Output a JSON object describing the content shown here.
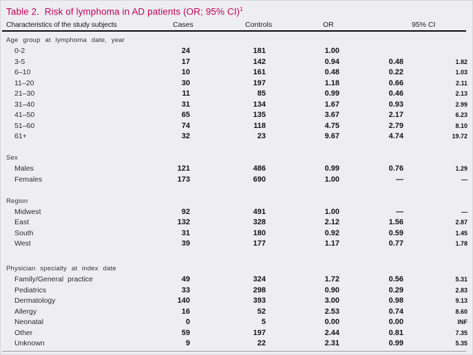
{
  "title": {
    "text": "Table 2.  Risk of lymphoma in AD patients (OR; 95% CI)",
    "superscript": "1"
  },
  "header": {
    "characteristics": "Characteristics of the study subjects",
    "cases": "Cases",
    "controls": "Controls",
    "or": "OR",
    "ci": "95% CI"
  },
  "colors": {
    "title": "#C2005E",
    "background": "#EEEEF0",
    "header_rule": "#0A0A0A",
    "bottom_rule": "#9A9AA0",
    "text": "#1A1A1A"
  },
  "table": {
    "sections": [
      {
        "label": "Age group at lymphoma date, year",
        "rows": [
          {
            "label": "0-2",
            "cases": "24",
            "controls": "181",
            "or": "1.00",
            "ci_low": "",
            "ci_high": ""
          },
          {
            "label": "3-5",
            "cases": "17",
            "controls": "142",
            "or": "0.94",
            "ci_low": "0.48",
            "ci_high": "1.82"
          },
          {
            "label": "6–10",
            "cases": "10",
            "controls": "161",
            "or": "0.48",
            "ci_low": "0.22",
            "ci_high": "1.03"
          },
          {
            "label": "11–20",
            "cases": "30",
            "controls": "197",
            "or": "1.18",
            "ci_low": "0.66",
            "ci_high": "2.11"
          },
          {
            "label": "21–30",
            "cases": "11",
            "controls": "85",
            "or": "0.99",
            "ci_low": "0.46",
            "ci_high": "2.13"
          },
          {
            "label": "31–40",
            "cases": "31",
            "controls": "134",
            "or": "1.67",
            "ci_low": "0.93",
            "ci_high": "2.99"
          },
          {
            "label": "41–50",
            "cases": "65",
            "controls": "135",
            "or": "3.67",
            "ci_low": "2.17",
            "ci_high": "6.23"
          },
          {
            "label": "51–60",
            "cases": "74",
            "controls": "118",
            "or": "4.75",
            "ci_low": "2.79",
            "ci_high": "8.10"
          },
          {
            "label": "61+",
            "cases": "32",
            "controls": "23",
            "or": "9.67",
            "ci_low": "4.74",
            "ci_high": "19.72"
          }
        ]
      },
      {
        "label": "Sex",
        "rows": [
          {
            "label": "Males",
            "cases": "121",
            "controls": "486",
            "or": "0.99",
            "ci_low": "0.76",
            "ci_high": "1.29"
          },
          {
            "label": "Females",
            "cases": "173",
            "controls": "690",
            "or": "1.00",
            "ci_low": "—",
            "ci_high": "—"
          }
        ]
      },
      {
        "label": "Region",
        "rows": [
          {
            "label": "Midwest",
            "cases": "92",
            "controls": "491",
            "or": "1.00",
            "ci_low": "—",
            "ci_high": "—"
          },
          {
            "label": "East",
            "cases": "132",
            "controls": "328",
            "or": "2.12",
            "ci_low": "1.56",
            "ci_high": "2.87"
          },
          {
            "label": "South",
            "cases": "31",
            "controls": "180",
            "or": "0.92",
            "ci_low": "0.59",
            "ci_high": "1.45"
          },
          {
            "label": "West",
            "cases": "39",
            "controls": "177",
            "or": "1.17",
            "ci_low": "0.77",
            "ci_high": "1.78"
          }
        ]
      },
      {
        "label": "Physician specialty at index date",
        "rows": [
          {
            "label": "Family/General practice",
            "cases": "49",
            "controls": "324",
            "or": "1.72",
            "ci_low": "0.56",
            "ci_high": "5.31"
          },
          {
            "label": "Pediatrics",
            "cases": "33",
            "controls": "298",
            "or": "0.90",
            "ci_low": "0.29",
            "ci_high": "2.83"
          },
          {
            "label": "Dermatology",
            "cases": "140",
            "controls": "393",
            "or": "3.00",
            "ci_low": "0.98",
            "ci_high": "9.13"
          },
          {
            "label": "Allergy",
            "cases": "16",
            "controls": "52",
            "or": "2.53",
            "ci_low": "0.74",
            "ci_high": "8.60"
          },
          {
            "label": "Neonatal",
            "cases": "0",
            "controls": "5",
            "or": "0.00",
            "ci_low": "0.00",
            "ci_high": "INF"
          },
          {
            "label": "Other",
            "cases": "59",
            "controls": "197",
            "or": "2.44",
            "ci_low": "0.81",
            "ci_high": "7.35"
          },
          {
            "label": "Unknown",
            "cases": "9",
            "controls": "22",
            "or": "2.31",
            "ci_low": "0.99",
            "ci_high": "5.35"
          }
        ]
      }
    ]
  }
}
